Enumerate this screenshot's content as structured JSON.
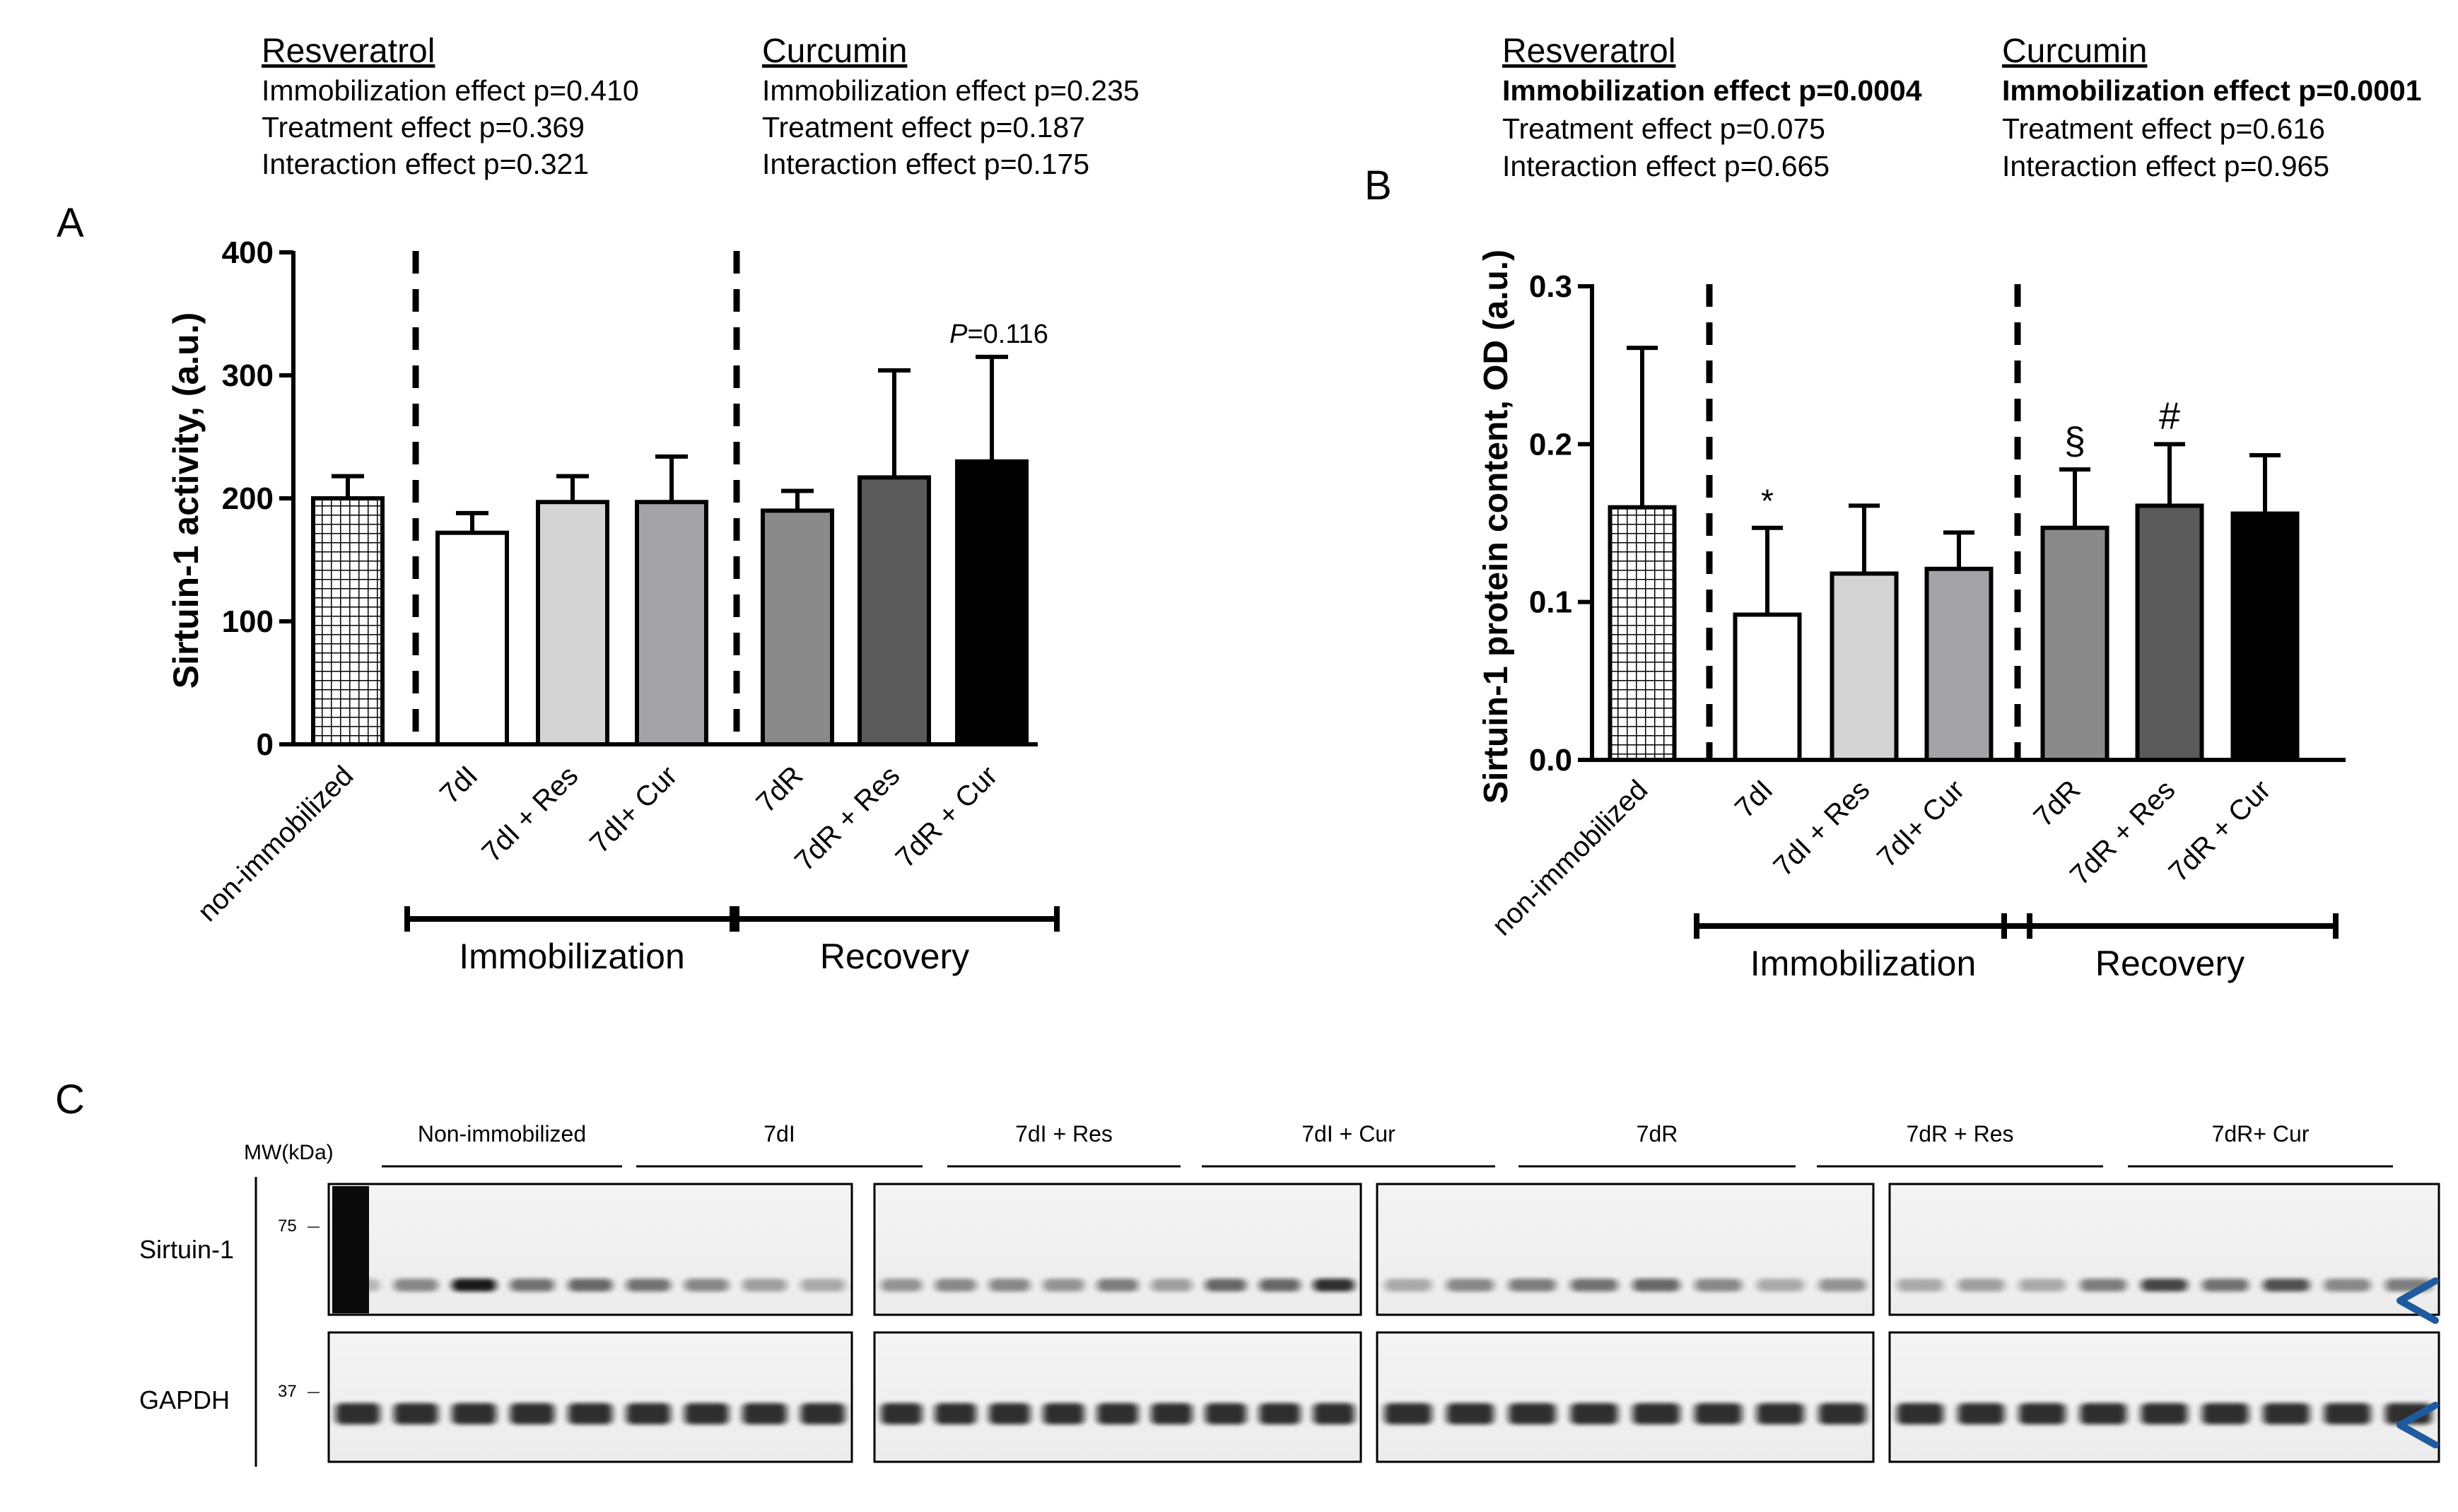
{
  "chart_data": [
    {
      "panel": "A",
      "type": "bar",
      "ylabel": "Sirtuin-1 activity, (a.u.)",
      "ylim": [
        0,
        400
      ],
      "yticks": [
        0,
        100,
        200,
        300,
        400
      ],
      "categories": [
        "non-immobilized",
        "7dI",
        "7dI + Res",
        "7dI+ Cur",
        "7dR",
        "7dR + Res",
        "7dR + Cur"
      ],
      "values": [
        200,
        172,
        197,
        197,
        190,
        217,
        230
      ],
      "errors": [
        18,
        16,
        21,
        37,
        16,
        87,
        85
      ],
      "fills": [
        "crosshatch",
        "#ffffff",
        "#d4d4d4",
        "#a3a3a8",
        "#8a8a8a",
        "#5a5a5a",
        "#000000"
      ],
      "annotations": [
        {
          "category": "7dR + Cur",
          "prefix": "P",
          "text": "=0.116"
        }
      ],
      "groups": [
        {
          "label": "Immobilization",
          "from": 1,
          "to": 3
        },
        {
          "label": "Recovery",
          "from": 4,
          "to": 6
        }
      ],
      "stats": [
        {
          "title": "Resveratrol",
          "lines": [
            "Immobilization effect p=0.410",
            "Treatment effect p=0.369",
            "Interaction effect p=0.321"
          ],
          "bold_lines": []
        },
        {
          "title": "Curcumin",
          "lines": [
            "Immobilization effect p=0.235",
            "Treatment effect p=0.187",
            "Interaction effect p=0.175"
          ],
          "bold_lines": []
        }
      ]
    },
    {
      "panel": "B",
      "type": "bar",
      "ylabel": "Sirtuin-1 protein content, OD (a.u.)",
      "ylim": [
        0,
        0.3
      ],
      "yticks": [
        "0.0",
        "0.1",
        "0.2",
        "0.3"
      ],
      "categories": [
        "non-immobilized",
        "7dI",
        "7dI + Res",
        "7dI+ Cur",
        "7dR",
        "7dR + Res",
        "7dR + Cur"
      ],
      "values": [
        0.16,
        0.092,
        0.118,
        0.121,
        0.147,
        0.161,
        0.156
      ],
      "errors": [
        0.101,
        0.055,
        0.043,
        0.023,
        0.037,
        0.039,
        0.037
      ],
      "fills": [
        "crosshatch",
        "#ffffff",
        "#d4d4d4",
        "#a3a3a8",
        "#8a8a8a",
        "#5a5a5a",
        "#000000"
      ],
      "annotations": [
        {
          "category": "7dI",
          "text": "*"
        },
        {
          "category": "7dR",
          "text": "§"
        },
        {
          "category": "7dR + Res",
          "text": "#"
        }
      ],
      "groups": [
        {
          "label": "Immobilization",
          "from": 1,
          "to": 3
        },
        {
          "label": "Recovery",
          "from": 4,
          "to": 6
        }
      ],
      "stats": [
        {
          "title": "Resveratrol",
          "lines": [
            "Immobilization effect p=0.0004",
            "Treatment effect p=0.075",
            "Interaction effect p=0.665"
          ],
          "bold_lines": [
            0
          ]
        },
        {
          "title": "Curcumin",
          "lines": [
            "Immobilization effect p=0.0001",
            "Treatment effect p=0.616",
            "Interaction effect p=0.965"
          ],
          "bold_lines": [
            0
          ]
        }
      ]
    }
  ],
  "blot": {
    "panel": "C",
    "mw_label": "MW(kDa)",
    "lane_groups": [
      "Non-immobilized",
      "7dI",
      "7dI + Res",
      "7dI + Cur",
      "7dR",
      "7dR + Res",
      "7dR+ Cur"
    ],
    "rows": [
      {
        "label": "Sirtuin-1",
        "mw": "75"
      },
      {
        "label": "GAPDH",
        "mw": "37"
      }
    ]
  }
}
